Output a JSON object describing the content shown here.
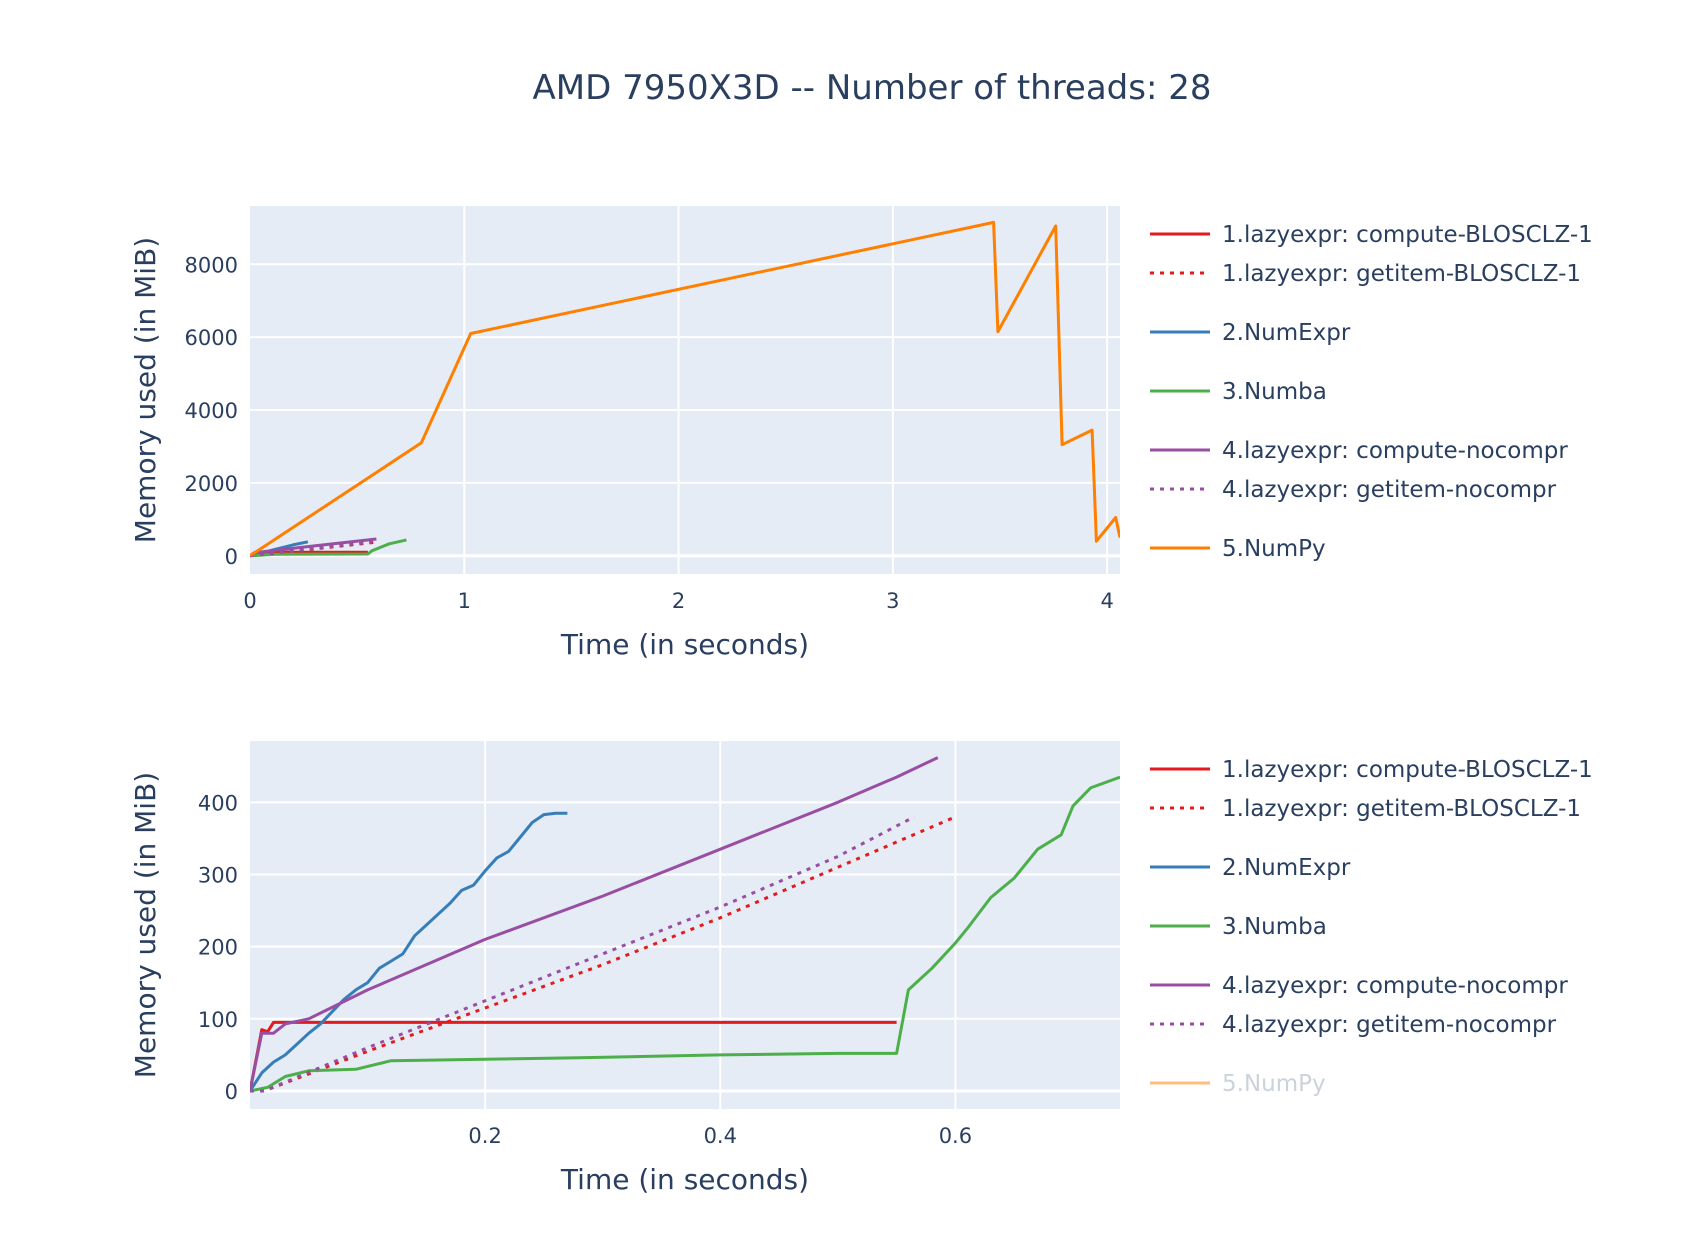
{
  "title": "AMD 7950X3D -- Number of threads: 28",
  "legend": {
    "items": [
      {
        "label": "1.lazyexpr: compute-BLOSCLZ-1",
        "color": "#e41a1c",
        "dash": "solid"
      },
      {
        "label": "1.lazyexpr: getitem-BLOSCLZ-1",
        "color": "#e41a1c",
        "dash": "dot"
      },
      {
        "label": "2.NumExpr",
        "color": "#377eb8",
        "dash": "solid"
      },
      {
        "label": "3.Numba",
        "color": "#4daf4a",
        "dash": "solid"
      },
      {
        "label": "4.lazyexpr: compute-nocompr",
        "color": "#984ea3",
        "dash": "solid"
      },
      {
        "label": "4.lazyexpr: getitem-nocompr",
        "color": "#984ea3",
        "dash": "dot"
      },
      {
        "label": "5.NumPy",
        "color": "#ff7f00",
        "dash": "solid"
      }
    ]
  },
  "colors": {
    "plot_bg": "#e5ecf6",
    "grid": "#ffffff",
    "text": "#2a3f5f"
  },
  "chart_data": [
    {
      "type": "line",
      "xlabel": "Time (in seconds)",
      "ylabel": "Memory used (in MiB)",
      "xlim": [
        0,
        4.06
      ],
      "ylim": [
        -500,
        9600
      ],
      "xticks": [
        "0",
        "1",
        "2",
        "3",
        "4"
      ],
      "yticks": [
        "0",
        "2000",
        "4000",
        "6000",
        "8000"
      ],
      "xtick_values": [
        0,
        1,
        2,
        3,
        4
      ],
      "ytick_values": [
        0,
        2000,
        4000,
        6000,
        8000
      ],
      "grid": true,
      "legend_position": "right",
      "series": [
        {
          "name": "1.lazyexpr: compute-BLOSCLZ-1",
          "x": [
            0,
            0.02,
            0.03,
            0.55
          ],
          "y": [
            0,
            85,
            95,
            95
          ]
        },
        {
          "name": "1.lazyexpr: getitem-BLOSCLZ-1",
          "x": [
            0,
            0.3,
            0.6
          ],
          "y": [
            0,
            190,
            380
          ]
        },
        {
          "name": "2.NumExpr",
          "x": [
            0,
            0.1,
            0.2,
            0.27
          ],
          "y": [
            0,
            150,
            300,
            385
          ]
        },
        {
          "name": "3.Numba",
          "x": [
            0,
            0.12,
            0.55,
            0.57,
            0.65,
            0.73
          ],
          "y": [
            0,
            40,
            50,
            140,
            330,
            435
          ]
        },
        {
          "name": "4.lazyexpr: compute-nocompr",
          "x": [
            0,
            0.03,
            0.3,
            0.59
          ],
          "y": [
            0,
            90,
            270,
            460
          ]
        },
        {
          "name": "4.lazyexpr: getitem-nocompr",
          "x": [
            0,
            0.3,
            0.57
          ],
          "y": [
            0,
            200,
            380
          ]
        },
        {
          "name": "5.NumPy",
          "x": [
            0,
            0.8,
            1.03,
            3.47,
            3.49,
            3.76,
            3.79,
            3.93,
            3.95,
            4.04,
            4.06
          ],
          "y": [
            0,
            3100,
            6100,
            9150,
            6150,
            9050,
            3050,
            3450,
            400,
            1050,
            500
          ]
        }
      ]
    },
    {
      "type": "line",
      "xlabel": "Time (in seconds)",
      "ylabel": "Memory used (in MiB)",
      "xlim": [
        0,
        0.74
      ],
      "ylim": [
        -25,
        485
      ],
      "xticks": [
        "0.2",
        "0.4",
        "0.6"
      ],
      "yticks": [
        "0",
        "100",
        "200",
        "300",
        "400"
      ],
      "xtick_values": [
        0.2,
        0.4,
        0.6
      ],
      "ytick_values": [
        0,
        100,
        200,
        300,
        400
      ],
      "grid": true,
      "legend_position": "right",
      "series": [
        {
          "name": "1.lazyexpr: compute-BLOSCLZ-1",
          "x": [
            0,
            0.01,
            0.015,
            0.02,
            0.55
          ],
          "y": [
            0,
            85,
            82,
            95,
            95
          ]
        },
        {
          "name": "1.lazyexpr: getitem-BLOSCLZ-1",
          "x": [
            0,
            0.012,
            0.1,
            0.2,
            0.3,
            0.4,
            0.5,
            0.6
          ],
          "y": [
            0,
            0,
            55,
            115,
            175,
            240,
            310,
            380
          ]
        },
        {
          "name": "2.NumExpr",
          "x": [
            0,
            0.01,
            0.02,
            0.03,
            0.04,
            0.05,
            0.06,
            0.07,
            0.08,
            0.09,
            0.1,
            0.11,
            0.12,
            0.13,
            0.14,
            0.15,
            0.16,
            0.17,
            0.18,
            0.19,
            0.2,
            0.21,
            0.22,
            0.23,
            0.24,
            0.25,
            0.26,
            0.27
          ],
          "y": [
            0,
            25,
            40,
            50,
            65,
            80,
            93,
            110,
            127,
            140,
            150,
            170,
            180,
            190,
            215,
            230,
            245,
            260,
            278,
            285,
            305,
            323,
            332,
            352,
            372,
            383,
            385,
            385
          ]
        },
        {
          "name": "3.Numba",
          "x": [
            0,
            0.015,
            0.03,
            0.05,
            0.09,
            0.12,
            0.2,
            0.28,
            0.4,
            0.5,
            0.55,
            0.56,
            0.58,
            0.6,
            0.61,
            0.63,
            0.65,
            0.67,
            0.69,
            0.7,
            0.715,
            0.74
          ],
          "y": [
            0,
            5,
            20,
            28,
            30,
            42,
            44,
            46,
            50,
            52,
            52,
            140,
            170,
            205,
            225,
            268,
            295,
            335,
            355,
            395,
            420,
            435
          ]
        },
        {
          "name": "4.lazyexpr: compute-nocompr",
          "x": [
            0,
            0.01,
            0.02,
            0.03,
            0.05,
            0.1,
            0.2,
            0.3,
            0.4,
            0.5,
            0.55,
            0.585
          ],
          "y": [
            0,
            80,
            80,
            93,
            100,
            140,
            210,
            270,
            335,
            400,
            435,
            462
          ]
        },
        {
          "name": "4.lazyexpr: getitem-nocompr",
          "x": [
            0,
            0.012,
            0.1,
            0.2,
            0.3,
            0.4,
            0.5,
            0.565
          ],
          "y": [
            0,
            0,
            60,
            125,
            190,
            255,
            325,
            380
          ]
        }
      ],
      "hidden_series": [
        "5.NumPy"
      ]
    }
  ]
}
